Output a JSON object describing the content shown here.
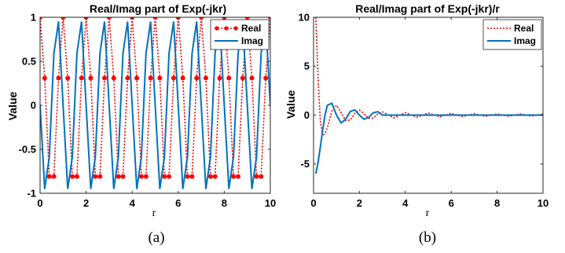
{
  "colors": {
    "real": "#ff0000",
    "imag": "#0072bd",
    "axes": "#262626"
  },
  "chart_data": [
    {
      "type": "line",
      "title": "Real/Imag part of Exp(-jkr)",
      "xlabel": "r",
      "ylabel": "Value",
      "caption": "(a)",
      "xlim": [
        0,
        10
      ],
      "ylim": [
        -1,
        1
      ],
      "xticks": [
        0,
        2,
        4,
        6,
        8,
        10
      ],
      "xtick_labels": [
        "0",
        "2",
        "4",
        "6",
        "8",
        "10"
      ],
      "yticks": [
        -1,
        -0.5,
        0,
        0.5,
        1
      ],
      "ytick_labels": [
        "-1",
        "-0.5",
        "0",
        "0.5",
        "1"
      ],
      "legend_position": "top-right",
      "grid": false,
      "x": [
        0,
        0.2,
        0.4,
        0.6,
        0.8,
        1.0,
        1.2,
        1.4,
        1.6,
        1.8,
        2.0,
        2.2,
        2.4,
        2.6,
        2.8,
        3.0,
        3.2,
        3.4,
        3.6,
        3.8,
        4.0,
        4.2,
        4.4,
        4.6,
        4.8,
        5.0,
        5.2,
        5.4,
        5.6,
        5.8,
        6.0,
        6.2,
        6.4,
        6.6,
        6.8,
        7.0,
        7.2,
        7.4,
        7.6,
        7.8,
        8.0,
        8.2,
        8.4,
        8.6,
        8.8,
        9.0,
        9.2,
        9.4,
        9.6,
        9.8,
        10.0
      ],
      "series": [
        {
          "name": "Real",
          "style": "dotted-markers",
          "values": [
            1.0,
            0.309,
            -0.809,
            -0.809,
            0.309,
            1.0,
            0.309,
            -0.809,
            -0.809,
            0.309,
            1.0,
            0.309,
            -0.809,
            -0.809,
            0.309,
            1.0,
            0.309,
            -0.809,
            -0.809,
            0.309,
            1.0,
            0.309,
            -0.809,
            -0.809,
            0.309,
            1.0,
            0.309,
            -0.809,
            -0.809,
            0.309,
            1.0,
            0.309,
            -0.809,
            -0.809,
            0.309,
            1.0,
            0.309,
            -0.809,
            -0.809,
            0.309,
            1.0,
            0.309,
            -0.809,
            -0.809,
            0.309,
            1.0,
            0.309,
            -0.809,
            -0.809,
            0.309,
            1.0
          ]
        },
        {
          "name": "Imag",
          "style": "solid",
          "values": [
            0.0,
            -0.951,
            -0.588,
            0.588,
            0.951,
            0.0,
            -0.951,
            -0.588,
            0.588,
            0.951,
            0.0,
            -0.951,
            -0.588,
            0.588,
            0.951,
            0.0,
            -0.951,
            -0.588,
            0.588,
            0.951,
            0.0,
            -0.951,
            -0.588,
            0.588,
            0.951,
            0.0,
            -0.951,
            -0.588,
            0.588,
            0.951,
            0.0,
            -0.951,
            -0.588,
            0.588,
            0.951,
            0.0,
            -0.951,
            -0.588,
            0.588,
            0.951,
            0.0,
            -0.951,
            -0.588,
            0.588,
            0.951,
            0.0,
            -0.951,
            -0.588,
            0.588,
            0.951,
            0.0
          ]
        }
      ]
    },
    {
      "type": "line",
      "title": "Real/Imag part of Exp(-jkr)/r",
      "xlabel": "r",
      "ylabel": "Value",
      "caption": "(b)",
      "xlim": [
        0,
        10
      ],
      "ylim": [
        -8,
        10
      ],
      "xticks": [
        0,
        2,
        4,
        6,
        8,
        10
      ],
      "xtick_labels": [
        "0",
        "2",
        "4",
        "6",
        "8",
        "10"
      ],
      "yticks": [
        -5,
        0,
        5,
        10
      ],
      "ytick_labels": [
        "-5",
        "0",
        "5",
        "10"
      ],
      "legend_position": "top-right",
      "grid": false,
      "x": [
        0.1,
        0.2,
        0.3,
        0.4,
        0.5,
        0.6,
        0.8,
        1.0,
        1.2,
        1.4,
        1.6,
        1.8,
        2.0,
        2.2,
        2.4,
        2.6,
        2.8,
        3.0,
        3.5,
        4.0,
        4.5,
        5.0,
        5.5,
        6.0,
        6.5,
        7.0,
        7.5,
        8.0,
        8.5,
        9.0,
        9.5,
        10.0
      ],
      "series": [
        {
          "name": "Real",
          "style": "dotted",
          "values": [
            10.0,
            3.5,
            -0.7,
            -2.1,
            -1.9,
            -1.3,
            0.4,
            1.0,
            0.26,
            -0.58,
            -0.5,
            0.17,
            0.5,
            0.14,
            -0.34,
            -0.31,
            0.11,
            0.33,
            -0.29,
            0.25,
            -0.22,
            0.2,
            -0.18,
            0.17,
            -0.15,
            0.14,
            -0.13,
            0.12,
            -0.12,
            0.11,
            -0.1,
            0.1
          ]
        },
        {
          "name": "Imag",
          "style": "solid",
          "values": [
            -6.0,
            -4.8,
            -3.2,
            -1.5,
            0.0,
            1.0,
            1.2,
            0.0,
            -0.8,
            -0.42,
            0.37,
            0.53,
            0.0,
            -0.43,
            -0.24,
            0.23,
            0.34,
            0.0,
            0.0,
            0.0,
            0.0,
            0.0,
            0.0,
            0.0,
            0.0,
            0.0,
            0.0,
            0.0,
            0.0,
            0.0,
            0.0,
            0.0
          ]
        }
      ]
    }
  ]
}
